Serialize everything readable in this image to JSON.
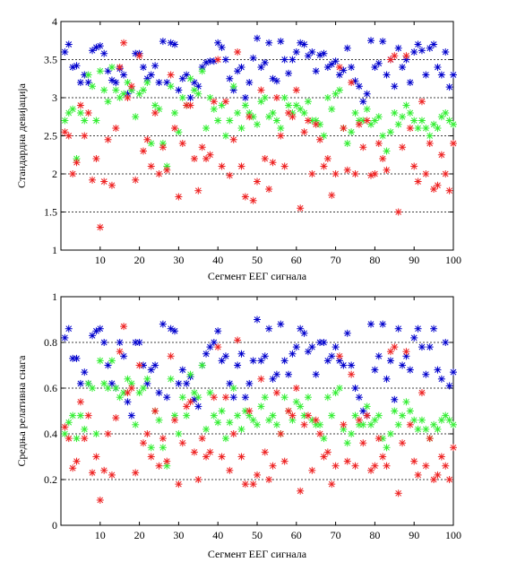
{
  "chart_data": [
    {
      "type": "scatter",
      "marker": "*",
      "xlabel": "Сегмент ЕЕГ сигнала",
      "ylabel": "Стандардна девијација",
      "xlim": [
        0,
        100
      ],
      "ylim": [
        1,
        4
      ],
      "xticks": [
        10,
        20,
        30,
        40,
        50,
        60,
        70,
        80,
        90,
        100
      ],
      "yticks": [
        1,
        1.5,
        2,
        2.5,
        3,
        3.5,
        4
      ],
      "grid_y": [
        1.5,
        2,
        2.5,
        3,
        3.5
      ],
      "series": [
        {
          "color": "#0000cc",
          "values": [
            3.6,
            3.7,
            3.4,
            3.42,
            3.2,
            3.3,
            3.2,
            3.62,
            3.66,
            3.68,
            3.58,
            3.35,
            3.23,
            3.2,
            3.38,
            3.3,
            3.05,
            3.1,
            3.58,
            3.58,
            3.4,
            3.25,
            3.3,
            3.42,
            3.2,
            3.74,
            3.2,
            3.72,
            3.7,
            3.1,
            3.25,
            3.3,
            3.0,
            3.2,
            3.15,
            3.4,
            3.46,
            3.48,
            3.48,
            3.72,
            3.66,
            3.5,
            3.25,
            3.1,
            3.35,
            3.4,
            3.0,
            3.2,
            3.52,
            3.78,
            3.4,
            3.46,
            3.72,
            3.25,
            3.22,
            3.74,
            3.5,
            3.32,
            3.5,
            3.6,
            3.72,
            3.7,
            3.55,
            3.6,
            3.35,
            3.56,
            3.58,
            3.4,
            3.44,
            3.48,
            3.3,
            3.36,
            3.65,
            3.4,
            3.22,
            3.15,
            2.95,
            3.05,
            3.75,
            3.4,
            3.45,
            3.74,
            3.3,
            3.5,
            3.15,
            3.65,
            3.4,
            3.5,
            3.2,
            3.6,
            3.7,
            3.62,
            3.3,
            3.65,
            3.7,
            3.4,
            3.3,
            3.6,
            3.14,
            3.3
          ]
        },
        {
          "color": "#33ee33",
          "values": [
            2.7,
            2.8,
            2.85,
            2.2,
            2.8,
            2.7,
            3.3,
            3.15,
            2.7,
            3.35,
            3.1,
            2.95,
            3.4,
            3.1,
            3.0,
            3.05,
            3.2,
            3.1,
            2.75,
            3.05,
            3.1,
            3.2,
            2.4,
            2.9,
            2.85,
            2.4,
            2.1,
            3.15,
            2.8,
            2.55,
            3.0,
            2.9,
            3.25,
            3.1,
            3.05,
            3.35,
            2.6,
            3.0,
            2.85,
            2.7,
            2.9,
            2.5,
            2.7,
            3.15,
            2.8,
            2.6,
            2.9,
            2.8,
            2.75,
            2.65,
            2.95,
            3.0,
            2.75,
            2.8,
            2.7,
            2.6,
            3.0,
            2.9,
            2.8,
            2.9,
            2.85,
            2.8,
            2.95,
            2.7,
            2.7,
            2.65,
            2.5,
            3.0,
            2.85,
            3.05,
            3.1,
            2.6,
            2.4,
            2.55,
            2.8,
            2.7,
            2.7,
            2.85,
            2.65,
            2.7,
            2.75,
            2.5,
            2.3,
            2.55,
            2.8,
            2.65,
            2.75,
            2.9,
            2.8,
            2.7,
            2.6,
            2.7,
            2.6,
            2.5,
            2.65,
            2.6,
            2.75,
            2.8,
            2.7,
            2.65
          ]
        },
        {
          "color": "#ee2222",
          "values": [
            2.55,
            2.5,
            2.0,
            2.15,
            2.9,
            2.5,
            2.8,
            1.92,
            2.2,
            1.3,
            1.9,
            2.45,
            1.85,
            2.6,
            3.4,
            3.72,
            3.0,
            3.15,
            1.92,
            3.55,
            2.3,
            2.45,
            2.1,
            2.8,
            2.0,
            2.35,
            2.05,
            3.3,
            2.6,
            1.7,
            2.4,
            2.9,
            2.9,
            2.2,
            1.78,
            2.35,
            2.2,
            2.25,
            2.95,
            3.5,
            2.1,
            2.95,
            1.98,
            2.45,
            3.6,
            2.1,
            1.7,
            2.75,
            1.65,
            1.9,
            3.1,
            2.2,
            1.8,
            2.15,
            3.0,
            2.5,
            2.1,
            2.8,
            2.75,
            3.1,
            1.55,
            2.55,
            2.7,
            2.0,
            2.65,
            2.45,
            2.1,
            2.2,
            1.72,
            2.0,
            3.4,
            2.6,
            2.05,
            3.2,
            2.0,
            2.65,
            2.35,
            2.7,
            1.98,
            2.0,
            2.4,
            2.2,
            2.05,
            3.5,
            3.55,
            1.5,
            2.35,
            3.55,
            2.6,
            2.1,
            1.9,
            2.95,
            2.0,
            2.4,
            1.8,
            1.85,
            2.25,
            2.0,
            1.78,
            2.4
          ]
        }
      ]
    },
    {
      "type": "scatter",
      "marker": "*",
      "xlabel": "Сегмент ЕЕГ сигнала",
      "ylabel": "Средња релативна снага",
      "xlim": [
        0,
        100
      ],
      "ylim": [
        0,
        1
      ],
      "xticks": [
        10,
        20,
        30,
        40,
        50,
        60,
        70,
        80,
        90,
        100
      ],
      "yticks": [
        0,
        0.2,
        0.4,
        0.6,
        0.8,
        1
      ],
      "ytick_labels": [
        "0",
        "0.2",
        "0.4",
        "0.6",
        "0.8",
        "1"
      ],
      "grid_y": [
        0.2,
        0.4,
        0.6,
        0.8
      ],
      "series": [
        {
          "color": "#0000cc",
          "values": [
            0.82,
            0.86,
            0.73,
            0.73,
            0.62,
            0.67,
            0.62,
            0.83,
            0.85,
            0.86,
            0.8,
            0.7,
            0.62,
            0.6,
            0.8,
            0.74,
            0.54,
            0.48,
            0.8,
            0.8,
            0.7,
            0.62,
            0.68,
            0.7,
            0.58,
            0.88,
            0.56,
            0.86,
            0.85,
            0.62,
            0.68,
            0.62,
            0.65,
            0.55,
            0.52,
            0.7,
            0.75,
            0.78,
            0.8,
            0.85,
            0.72,
            0.74,
            0.62,
            0.56,
            0.7,
            0.75,
            0.56,
            0.62,
            0.72,
            0.9,
            0.72,
            0.74,
            0.86,
            0.64,
            0.66,
            0.88,
            0.72,
            0.66,
            0.75,
            0.78,
            0.86,
            0.84,
            0.76,
            0.78,
            0.66,
            0.8,
            0.8,
            0.72,
            0.74,
            0.78,
            0.72,
            0.7,
            0.84,
            0.7,
            0.6,
            0.56,
            0.5,
            0.48,
            0.88,
            0.68,
            0.74,
            0.88,
            0.64,
            0.72,
            0.55,
            0.86,
            0.7,
            0.74,
            0.68,
            0.82,
            0.86,
            0.78,
            0.66,
            0.78,
            0.86,
            0.68,
            0.64,
            0.8,
            0.61,
            0.67
          ]
        },
        {
          "color": "#33ee33",
          "values": [
            0.4,
            0.45,
            0.48,
            0.38,
            0.48,
            0.42,
            0.62,
            0.6,
            0.4,
            0.72,
            0.62,
            0.6,
            0.72,
            0.6,
            0.56,
            0.58,
            0.64,
            0.62,
            0.44,
            0.58,
            0.6,
            0.64,
            0.34,
            0.5,
            0.46,
            0.34,
            0.26,
            0.64,
            0.48,
            0.4,
            0.56,
            0.48,
            0.66,
            0.58,
            0.56,
            0.7,
            0.42,
            0.58,
            0.48,
            0.45,
            0.5,
            0.38,
            0.45,
            0.6,
            0.48,
            0.42,
            0.5,
            0.48,
            0.46,
            0.44,
            0.52,
            0.56,
            0.46,
            0.48,
            0.44,
            0.4,
            0.56,
            0.5,
            0.46,
            0.54,
            0.52,
            0.48,
            0.56,
            0.46,
            0.44,
            0.44,
            0.38,
            0.56,
            0.48,
            0.58,
            0.6,
            0.42,
            0.36,
            0.4,
            0.48,
            0.44,
            0.44,
            0.52,
            0.44,
            0.46,
            0.48,
            0.38,
            0.34,
            0.4,
            0.5,
            0.44,
            0.48,
            0.54,
            0.5,
            0.46,
            0.42,
            0.46,
            0.42,
            0.38,
            0.44,
            0.42,
            0.46,
            0.48,
            0.46,
            0.44
          ]
        },
        {
          "color": "#ee2222",
          "values": [
            0.43,
            0.38,
            0.25,
            0.28,
            0.54,
            0.38,
            0.48,
            0.23,
            0.3,
            0.11,
            0.24,
            0.4,
            0.22,
            0.47,
            0.76,
            0.87,
            0.58,
            0.6,
            0.23,
            0.7,
            0.36,
            0.4,
            0.3,
            0.5,
            0.26,
            0.38,
            0.28,
            0.74,
            0.46,
            0.18,
            0.36,
            0.52,
            0.54,
            0.32,
            0.2,
            0.38,
            0.3,
            0.32,
            0.56,
            0.78,
            0.3,
            0.56,
            0.24,
            0.4,
            0.81,
            0.3,
            0.18,
            0.5,
            0.18,
            0.22,
            0.64,
            0.32,
            0.2,
            0.26,
            0.58,
            0.4,
            0.28,
            0.5,
            0.48,
            0.6,
            0.15,
            0.44,
            0.48,
            0.24,
            0.46,
            0.4,
            0.3,
            0.32,
            0.18,
            0.26,
            0.74,
            0.44,
            0.28,
            0.66,
            0.26,
            0.46,
            0.36,
            0.48,
            0.24,
            0.26,
            0.38,
            0.3,
            0.26,
            0.76,
            0.78,
            0.14,
            0.36,
            0.76,
            0.44,
            0.28,
            0.22,
            0.58,
            0.26,
            0.38,
            0.2,
            0.22,
            0.3,
            0.26,
            0.2,
            0.34
          ]
        }
      ]
    }
  ]
}
